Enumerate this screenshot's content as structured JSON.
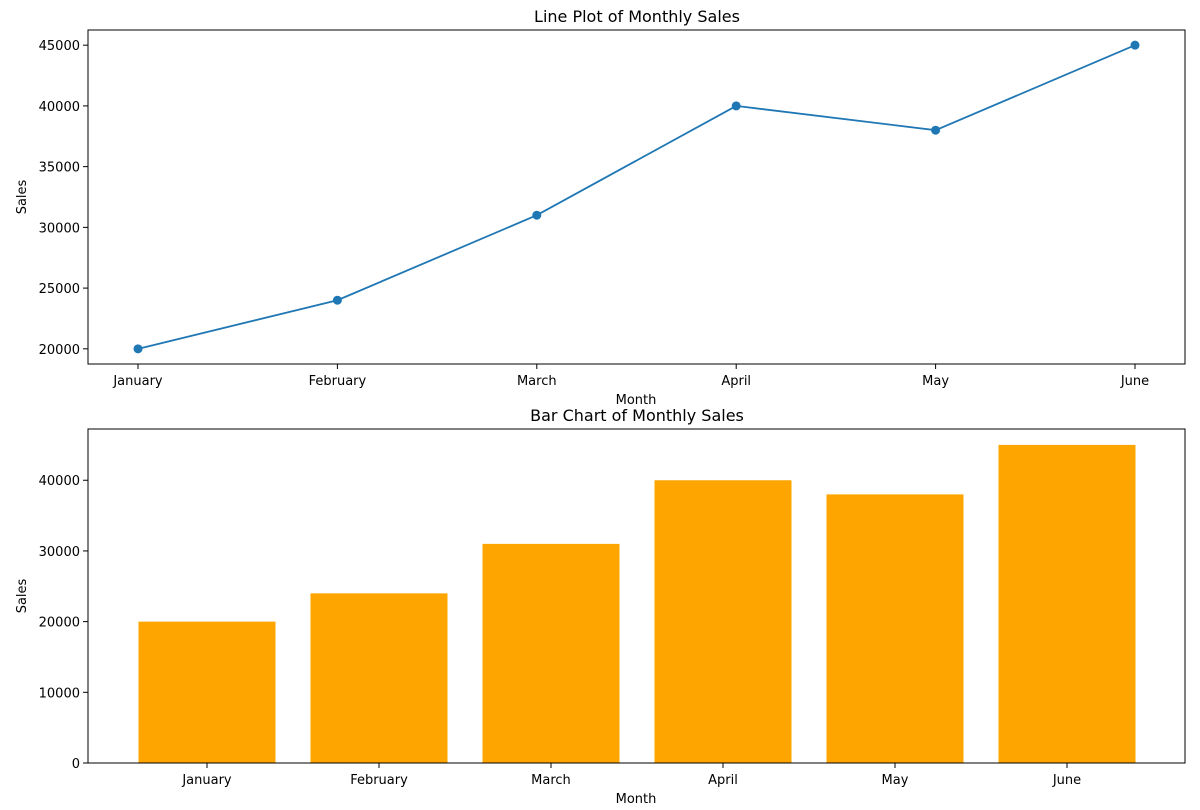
{
  "chart_data": [
    {
      "type": "line",
      "title": "Line Plot of Monthly Sales",
      "xlabel": "Month",
      "ylabel": "Sales",
      "categories": [
        "January",
        "February",
        "March",
        "April",
        "May",
        "June"
      ],
      "series": [
        {
          "values": [
            20000,
            24000,
            31000,
            40000,
            38000,
            45000
          ],
          "color": "#1f77b4",
          "marker": "circle"
        }
      ],
      "ylim": [
        18750,
        46250
      ],
      "yticks": [
        20000,
        25000,
        30000,
        35000,
        40000,
        45000
      ],
      "grid": false
    },
    {
      "type": "bar",
      "title": "Bar Chart of Monthly Sales",
      "xlabel": "Month",
      "ylabel": "Sales",
      "categories": [
        "January",
        "February",
        "March",
        "April",
        "May",
        "June"
      ],
      "values": [
        20000,
        24000,
        31000,
        40000,
        38000,
        45000
      ],
      "color": "#ffa500",
      "ylim": [
        0,
        47250
      ],
      "yticks": [
        0,
        10000,
        20000,
        30000,
        40000
      ],
      "grid": false
    }
  ]
}
